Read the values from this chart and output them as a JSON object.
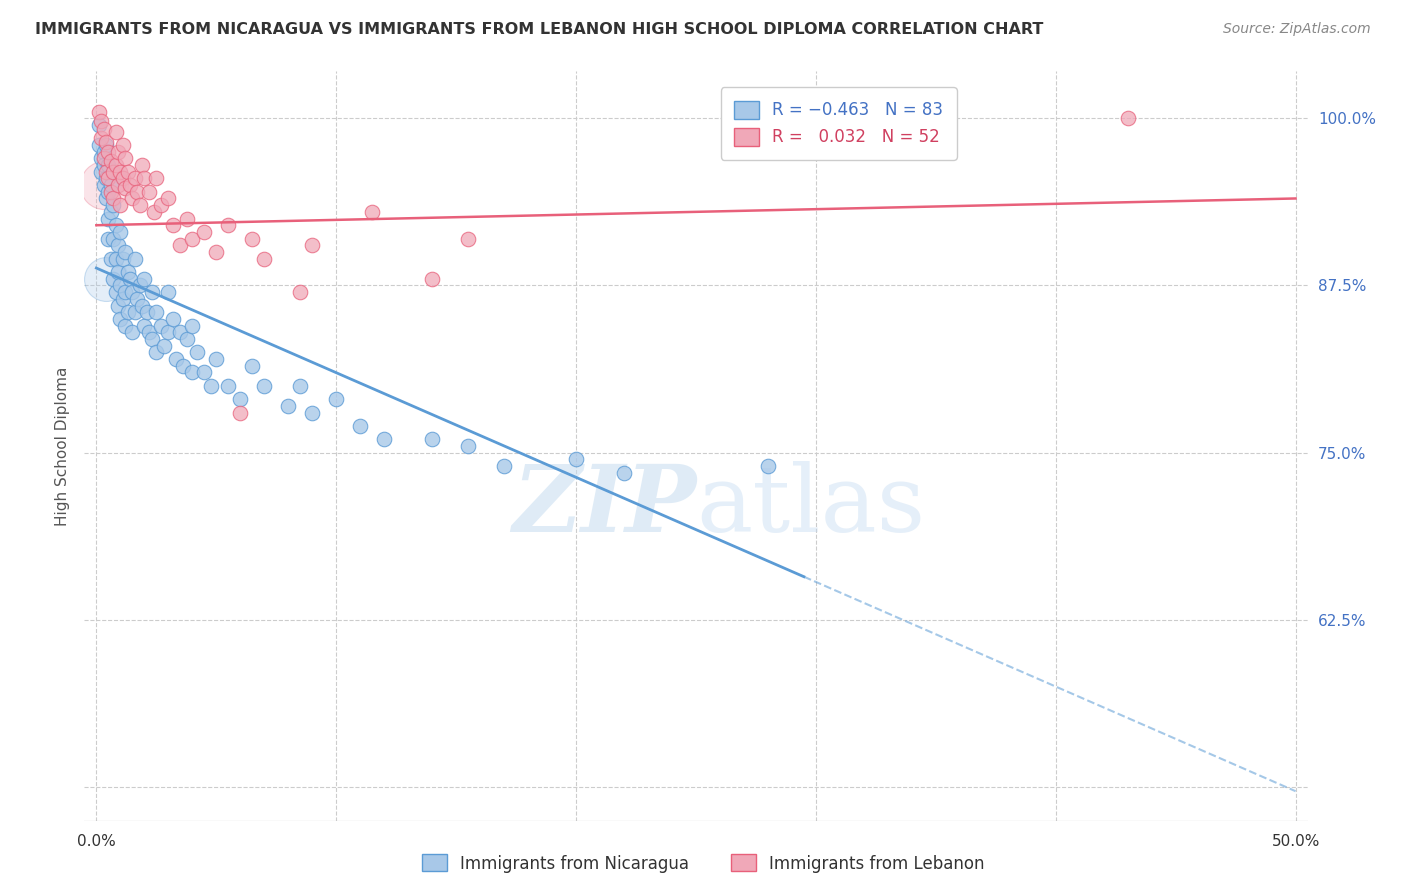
{
  "title": "IMMIGRANTS FROM NICARAGUA VS IMMIGRANTS FROM LEBANON HIGH SCHOOL DIPLOMA CORRELATION CHART",
  "source": "Source: ZipAtlas.com",
  "xlabel_ticks": [
    0.0,
    0.1,
    0.2,
    0.3,
    0.4,
    0.5
  ],
  "xlabel_tick_labels": [
    "0.0%",
    "",
    "",
    "",
    "",
    "50.0%"
  ],
  "ylabel_ticks": [
    0.5,
    0.625,
    0.75,
    0.875,
    1.0
  ],
  "ylabel_tick_labels": [
    "",
    "62.5%",
    "75.0%",
    "87.5%",
    "100.0%"
  ],
  "xlim": [
    -0.005,
    0.505
  ],
  "ylim": [
    0.475,
    1.035
  ],
  "watermark_zip": "ZIP",
  "watermark_atlas": "atlas",
  "blue_color": "#5b9bd5",
  "pink_color": "#e8607a",
  "blue_fill": "#a8c8e8",
  "pink_fill": "#f0a8b8",
  "trend_blue_x0": 0.0,
  "trend_blue_y0": 0.888,
  "trend_blue_x1": 0.5,
  "trend_blue_y1": 0.497,
  "trend_blue_solid_x1": 0.295,
  "trend_pink_x0": 0.0,
  "trend_pink_y0": 0.92,
  "trend_pink_x1": 0.5,
  "trend_pink_y1": 0.94,
  "nicaragua_points": [
    [
      0.001,
      0.995
    ],
    [
      0.001,
      0.98
    ],
    [
      0.002,
      0.97
    ],
    [
      0.002,
      0.96
    ],
    [
      0.003,
      0.975
    ],
    [
      0.003,
      0.965
    ],
    [
      0.003,
      0.95
    ],
    [
      0.004,
      0.98
    ],
    [
      0.004,
      0.955
    ],
    [
      0.004,
      0.94
    ],
    [
      0.005,
      0.965
    ],
    [
      0.005,
      0.945
    ],
    [
      0.005,
      0.925
    ],
    [
      0.005,
      0.91
    ],
    [
      0.006,
      0.95
    ],
    [
      0.006,
      0.93
    ],
    [
      0.006,
      0.895
    ],
    [
      0.007,
      0.935
    ],
    [
      0.007,
      0.91
    ],
    [
      0.007,
      0.88
    ],
    [
      0.008,
      0.92
    ],
    [
      0.008,
      0.895
    ],
    [
      0.008,
      0.87
    ],
    [
      0.009,
      0.905
    ],
    [
      0.009,
      0.885
    ],
    [
      0.009,
      0.86
    ],
    [
      0.01,
      0.915
    ],
    [
      0.01,
      0.875
    ],
    [
      0.01,
      0.85
    ],
    [
      0.011,
      0.895
    ],
    [
      0.011,
      0.865
    ],
    [
      0.012,
      0.9
    ],
    [
      0.012,
      0.87
    ],
    [
      0.012,
      0.845
    ],
    [
      0.013,
      0.885
    ],
    [
      0.013,
      0.855
    ],
    [
      0.014,
      0.88
    ],
    [
      0.015,
      0.87
    ],
    [
      0.015,
      0.84
    ],
    [
      0.016,
      0.895
    ],
    [
      0.016,
      0.855
    ],
    [
      0.017,
      0.865
    ],
    [
      0.018,
      0.875
    ],
    [
      0.019,
      0.86
    ],
    [
      0.02,
      0.88
    ],
    [
      0.02,
      0.845
    ],
    [
      0.021,
      0.855
    ],
    [
      0.022,
      0.84
    ],
    [
      0.023,
      0.87
    ],
    [
      0.023,
      0.835
    ],
    [
      0.025,
      0.855
    ],
    [
      0.025,
      0.825
    ],
    [
      0.027,
      0.845
    ],
    [
      0.028,
      0.83
    ],
    [
      0.03,
      0.87
    ],
    [
      0.03,
      0.84
    ],
    [
      0.032,
      0.85
    ],
    [
      0.033,
      0.82
    ],
    [
      0.035,
      0.84
    ],
    [
      0.036,
      0.815
    ],
    [
      0.038,
      0.835
    ],
    [
      0.04,
      0.845
    ],
    [
      0.04,
      0.81
    ],
    [
      0.042,
      0.825
    ],
    [
      0.045,
      0.81
    ],
    [
      0.048,
      0.8
    ],
    [
      0.05,
      0.82
    ],
    [
      0.055,
      0.8
    ],
    [
      0.06,
      0.79
    ],
    [
      0.065,
      0.815
    ],
    [
      0.07,
      0.8
    ],
    [
      0.08,
      0.785
    ],
    [
      0.085,
      0.8
    ],
    [
      0.09,
      0.78
    ],
    [
      0.1,
      0.79
    ],
    [
      0.11,
      0.77
    ],
    [
      0.12,
      0.76
    ],
    [
      0.14,
      0.76
    ],
    [
      0.155,
      0.755
    ],
    [
      0.17,
      0.74
    ],
    [
      0.2,
      0.745
    ],
    [
      0.22,
      0.735
    ],
    [
      0.28,
      0.74
    ]
  ],
  "lebanon_points": [
    [
      0.001,
      1.005
    ],
    [
      0.002,
      0.998
    ],
    [
      0.002,
      0.985
    ],
    [
      0.003,
      0.992
    ],
    [
      0.003,
      0.97
    ],
    [
      0.004,
      0.982
    ],
    [
      0.004,
      0.96
    ],
    [
      0.005,
      0.975
    ],
    [
      0.005,
      0.955
    ],
    [
      0.006,
      0.968
    ],
    [
      0.006,
      0.945
    ],
    [
      0.007,
      0.96
    ],
    [
      0.007,
      0.94
    ],
    [
      0.008,
      0.99
    ],
    [
      0.008,
      0.965
    ],
    [
      0.009,
      0.975
    ],
    [
      0.009,
      0.95
    ],
    [
      0.01,
      0.96
    ],
    [
      0.01,
      0.935
    ],
    [
      0.011,
      0.98
    ],
    [
      0.011,
      0.955
    ],
    [
      0.012,
      0.97
    ],
    [
      0.012,
      0.948
    ],
    [
      0.013,
      0.96
    ],
    [
      0.014,
      0.95
    ],
    [
      0.015,
      0.94
    ],
    [
      0.016,
      0.955
    ],
    [
      0.017,
      0.945
    ],
    [
      0.018,
      0.935
    ],
    [
      0.019,
      0.965
    ],
    [
      0.02,
      0.955
    ],
    [
      0.022,
      0.945
    ],
    [
      0.024,
      0.93
    ],
    [
      0.025,
      0.955
    ],
    [
      0.027,
      0.935
    ],
    [
      0.03,
      0.94
    ],
    [
      0.032,
      0.92
    ],
    [
      0.035,
      0.905
    ],
    [
      0.038,
      0.925
    ],
    [
      0.04,
      0.91
    ],
    [
      0.045,
      0.915
    ],
    [
      0.05,
      0.9
    ],
    [
      0.055,
      0.92
    ],
    [
      0.06,
      0.78
    ],
    [
      0.065,
      0.91
    ],
    [
      0.07,
      0.895
    ],
    [
      0.085,
      0.87
    ],
    [
      0.09,
      0.905
    ],
    [
      0.115,
      0.93
    ],
    [
      0.14,
      0.88
    ],
    [
      0.155,
      0.91
    ],
    [
      0.43,
      1.0
    ]
  ]
}
